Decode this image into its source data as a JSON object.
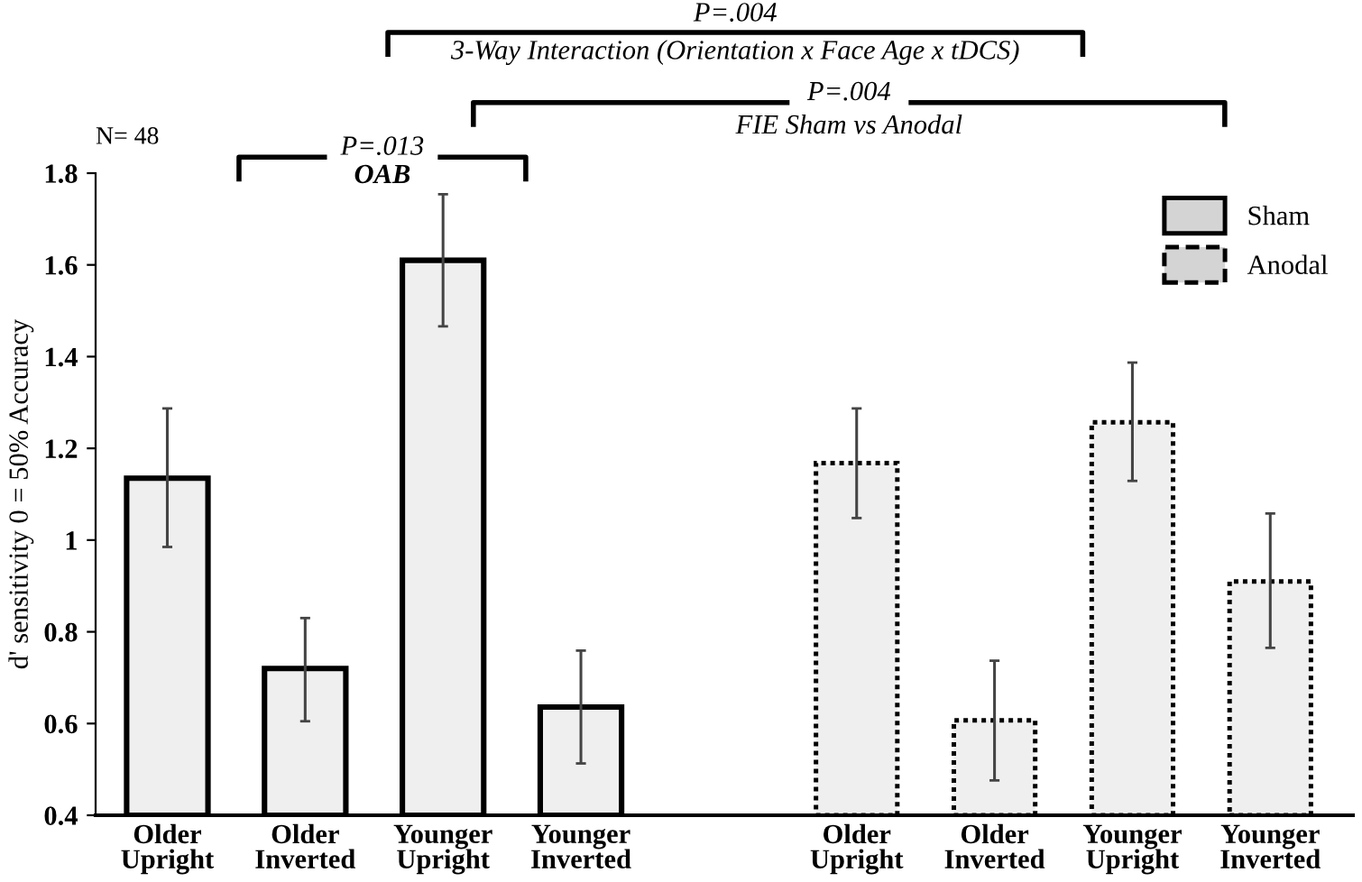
{
  "chart_data": {
    "type": "bar",
    "ylabel": "d' sensitivity 0 = 50% Accuracy",
    "categories": [
      "Older\nUpright",
      "Older\nInverted",
      "Younger\nUpright",
      "Younger\nInverted",
      null,
      "Older\nUpright",
      "Older\nInverted",
      "Younger\nUpright",
      "Younger\nInverted"
    ],
    "series": [
      {
        "name": "Sham",
        "color": "#efefef",
        "line_style": "solid",
        "values": [
          1.135,
          0.72,
          1.61,
          0.636,
          null,
          null,
          null,
          null,
          null
        ],
        "errors": [
          [
            0.985,
            1.287
          ],
          [
            0.605,
            0.83
          ],
          [
            1.466,
            1.754
          ],
          [
            0.513,
            0.759
          ],
          null,
          null,
          null,
          null,
          null
        ]
      },
      {
        "name": "Anodal",
        "color": "#efefef",
        "line_style": "dotted",
        "values": [
          null,
          null,
          null,
          null,
          null,
          1.168,
          0.607,
          1.257,
          0.91
        ],
        "errors": [
          null,
          null,
          null,
          null,
          null,
          [
            1.048,
            1.287
          ],
          [
            0.476,
            0.737
          ],
          [
            1.129,
            1.387
          ],
          [
            0.765,
            1.058
          ]
        ]
      }
    ],
    "ylim": [
      0.4,
      1.8
    ],
    "yticks": [
      0.4,
      0.6,
      0.8,
      1,
      1.2,
      1.4,
      1.6,
      1.8
    ],
    "grid": false,
    "legend": "top right",
    "annotations": [
      "N= 48",
      "P=.013",
      "OAB",
      "P=.004",
      "3-Way Interaction (Orientation x Face Age x tDCS)",
      "P=.004",
      "FIE Sham vs Anodal"
    ]
  }
}
